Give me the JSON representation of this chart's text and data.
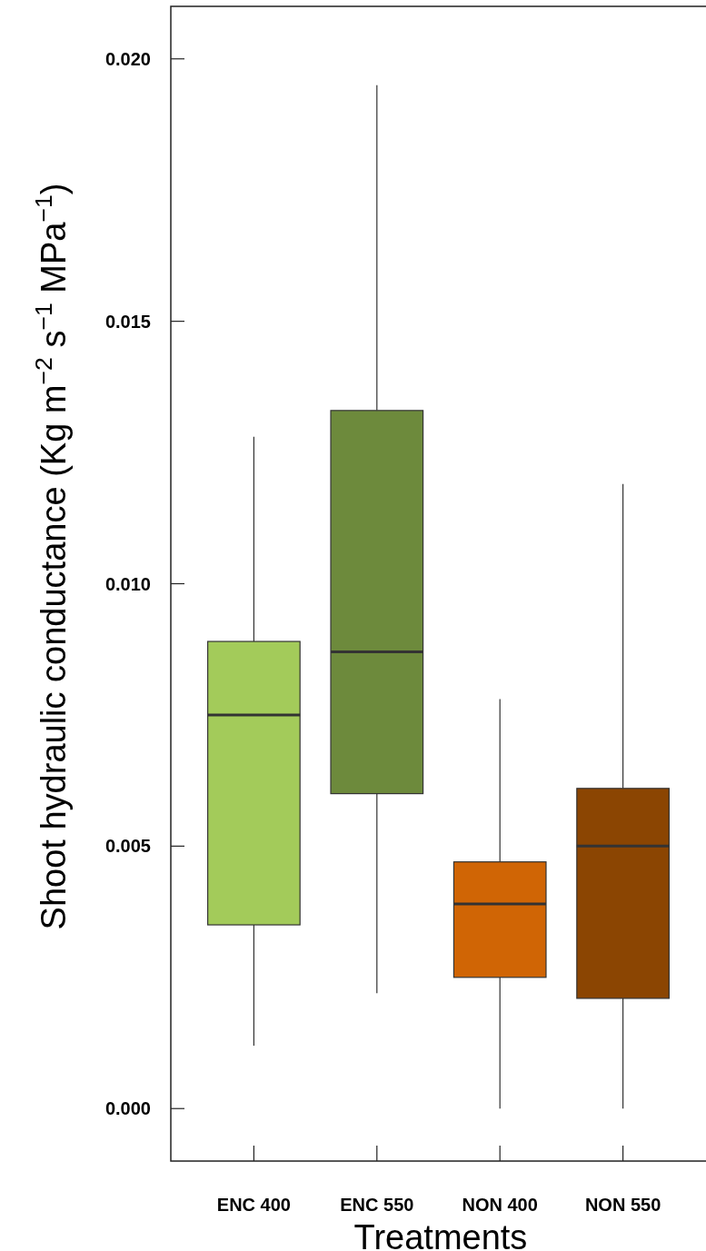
{
  "chart_data": {
    "type": "box",
    "xlabel": "Treatments",
    "ylabel": "Shoot hydraulic conductance (Kg m$^{−2}$ s$^{−1}$ MPa$^{−1}$)",
    "categories": [
      "ENC 400",
      "ENC 550",
      "NON 400",
      "NON 550"
    ],
    "colors": [
      "#a3cb5a",
      "#6d8a3c",
      "#d06505",
      "#8b4502"
    ],
    "boxes": [
      {
        "low": 0.0012,
        "q1": 0.0035,
        "median": 0.0075,
        "q3": 0.0089,
        "high": 0.0128
      },
      {
        "low": 0.0022,
        "q1": 0.006,
        "median": 0.0087,
        "q3": 0.0133,
        "high": 0.0195
      },
      {
        "low": 0.0,
        "q1": 0.0025,
        "median": 0.0039,
        "q3": 0.0047,
        "high": 0.0078
      },
      {
        "low": 0.0,
        "q1": 0.0021,
        "median": 0.005,
        "q3": 0.0061,
        "high": 0.0119
      }
    ],
    "ylim": [
      -0.001,
      0.021
    ],
    "yticks": [
      {
        "value": 0,
        "label": "0.000"
      },
      {
        "value": 0.005,
        "label": "0.005"
      },
      {
        "value": 0.01,
        "label": "0.010"
      },
      {
        "value": 0.015,
        "label": "0.015"
      },
      {
        "value": 0.02,
        "label": "0.020"
      }
    ]
  }
}
